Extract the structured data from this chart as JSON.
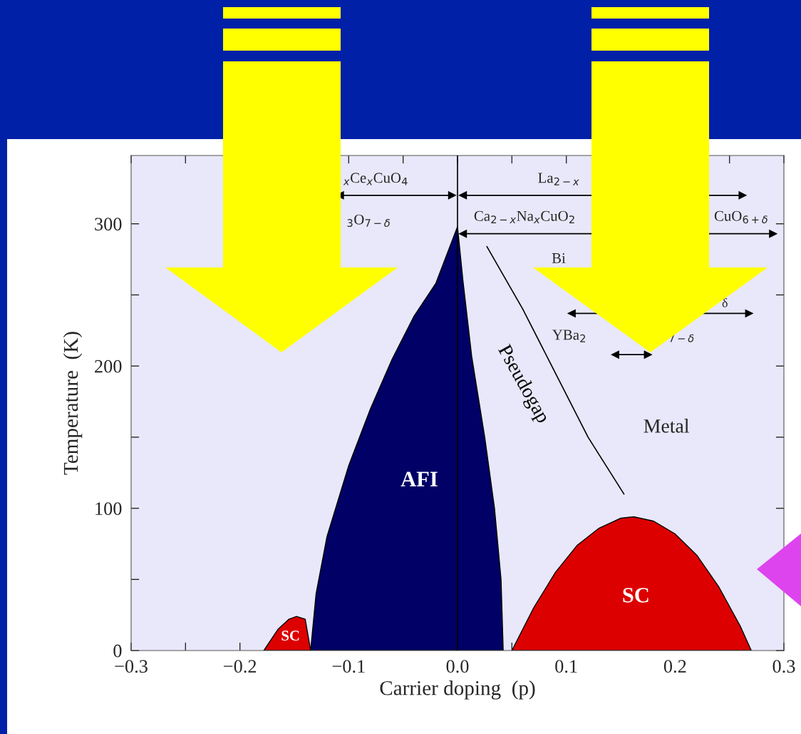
{
  "chart_data": {
    "type": "area",
    "xlabel": "Carrier doping  (p)",
    "ylabel": "Temperature  (K)",
    "xlim": [
      -0.3,
      0.3
    ],
    "ylim": [
      0,
      348
    ],
    "xticks": [
      {
        "value": -0.3,
        "label": "−0.3"
      },
      {
        "value": -0.25,
        "label": null
      },
      {
        "value": -0.2,
        "label": "−0.2"
      },
      {
        "value": -0.15,
        "label": null
      },
      {
        "value": -0.1,
        "label": "−0.1"
      },
      {
        "value": -0.05,
        "label": null
      },
      {
        "value": 0,
        "label": "0.0"
      },
      {
        "value": 0.05,
        "label": null
      },
      {
        "value": 0.1,
        "label": "0.1"
      },
      {
        "value": 0.15,
        "label": null
      },
      {
        "value": 0.2,
        "label": "0.2"
      },
      {
        "value": 0.25,
        "label": null
      },
      {
        "value": 0.3,
        "label": "0.3"
      }
    ],
    "yticks": [
      0,
      {
        "value": 50,
        "label": null
      },
      100,
      {
        "value": 150,
        "label": null
      },
      200,
      {
        "value": 250,
        "label": null
      },
      300
    ],
    "series": [
      {
        "name": "SC",
        "color": "#dd0000",
        "x": [
          -0.178,
          -0.165,
          -0.155,
          -0.148,
          -0.14,
          -0.135
        ],
        "values": [
          0,
          15,
          22,
          24,
          22,
          0
        ]
      },
      {
        "name": "AFI",
        "color": "#000066",
        "x": [
          -0.135,
          -0.13,
          -0.12,
          -0.1,
          -0.08,
          -0.06,
          -0.04,
          -0.02,
          0,
          0.005,
          0.013,
          0.025,
          0.034,
          0.04,
          0.042
        ],
        "values": [
          0,
          40,
          80,
          130,
          170,
          205,
          235,
          258,
          298,
          260,
          207,
          150,
          100,
          50,
          0
        ]
      },
      {
        "name": "SC",
        "color": "#dd0000",
        "x": [
          0.05,
          0.07,
          0.09,
          0.11,
          0.13,
          0.15,
          0.162,
          0.18,
          0.2,
          0.22,
          0.24,
          0.26,
          0.27
        ],
        "values": [
          0,
          30,
          55,
          74,
          86,
          93,
          94,
          91,
          82,
          67,
          45,
          17,
          0
        ]
      },
      {
        "name": "Pseudogap",
        "type": "line",
        "color": "#000000",
        "x": [
          0.027,
          0.06,
          0.09,
          0.12,
          0.153
        ],
        "values": [
          284,
          240,
          195,
          150,
          110
        ]
      },
      {
        "type": "line",
        "marker": "triangle",
        "color": "#000000",
        "x": [
          -0.108,
          -0.005
        ],
        "values": [
          320,
          320
        ]
      },
      {
        "type": "line",
        "marker": "triangle",
        "color": "#000000",
        "x": [
          0.005,
          0.262
        ],
        "values": [
          320,
          320
        ]
      },
      {
        "type": "line",
        "marker": "triangle",
        "color": "#000000",
        "x": [
          0.005,
          0.29
        ],
        "values": [
          293,
          293
        ]
      },
      {
        "type": "line",
        "marker": "triangle",
        "color": "#000000",
        "x": [
          0.105,
          0.268
        ],
        "values": [
          237,
          237
        ]
      },
      {
        "type": "line",
        "marker": "triangle",
        "color": "#000000",
        "x": [
          0.145,
          0.175
        ],
        "values": [
          208,
          208
        ]
      }
    ],
    "ref_lines": [
      {
        "axis": "x",
        "value": 0,
        "color": "#000000"
      }
    ],
    "annotations": [
      "$_{x}$Ce$_{x}$CuO$_{4}$",
      "$_{3}$O$_{7−δ}$",
      "La$_{2−x}$",
      "Ca$_{2−x}$Na$_{x}$CuO$_{2}$",
      "CuO$_{6+δ}$",
      "Bi",
      "δ",
      "YBa$_{2}$",
      "O$_{7−δ}$",
      "Metal"
    ]
  }
}
